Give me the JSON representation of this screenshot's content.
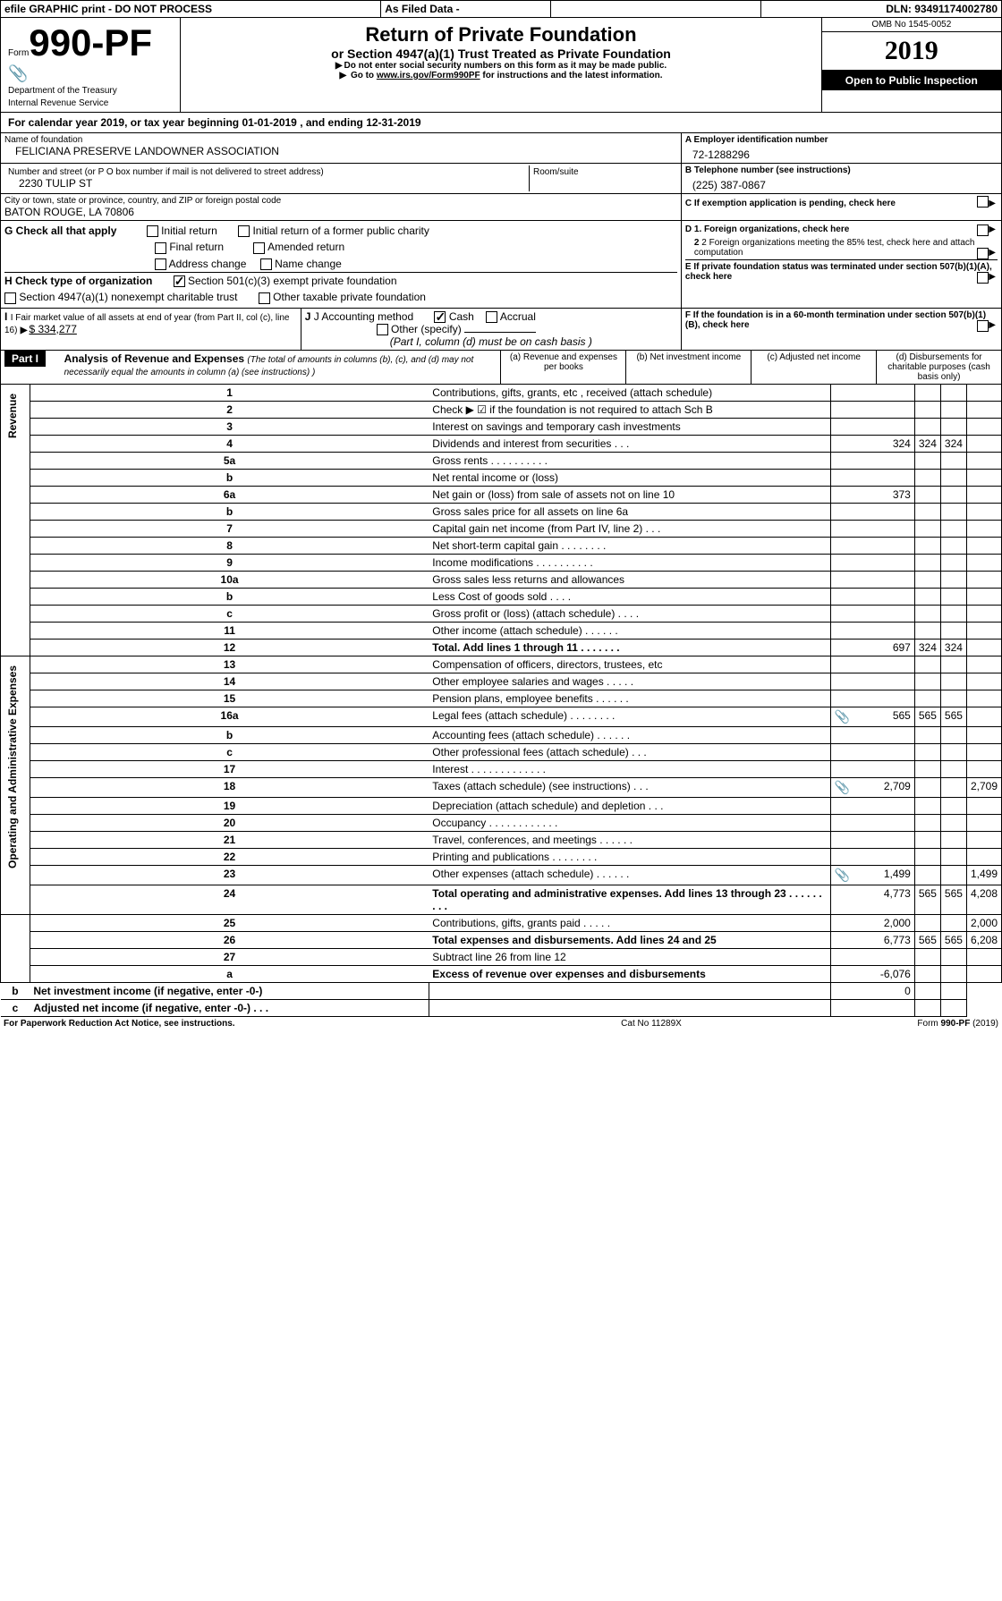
{
  "topbar": {
    "efile": "efile GRAPHIC print - DO NOT PROCESS",
    "asfiled": "As Filed Data -",
    "dln_label": "DLN:",
    "dln": "93491174002780"
  },
  "header": {
    "form_prefix": "Form",
    "form_number": "990-PF",
    "dept": "Department of the Treasury",
    "irs": "Internal Revenue Service",
    "title1": "Return of Private Foundation",
    "title2": "or Section 4947(a)(1) Trust Treated as Private Foundation",
    "note1": "Do not enter social security numbers on this form as it may be made public.",
    "note2_pre": "Go to ",
    "note2_link": "www.irs.gov/Form990PF",
    "note2_post": " for instructions and the latest information.",
    "omb": "OMB No 1545-0052",
    "year": "2019",
    "open_label": "Open to Public Inspection"
  },
  "calyear": {
    "text_pre": "For calendar year 2019, or tax year beginning ",
    "begin": "01-01-2019",
    "mid": " , and ending ",
    "end": "12-31-2019"
  },
  "id": {
    "name_label": "Name of foundation",
    "name": "FELICIANA PRESERVE LANDOWNER ASSOCIATION",
    "addr_label": "Number and street (or P O  box number if mail is not delivered to street address)",
    "addr": "2230 TULIP ST",
    "room_label": "Room/suite",
    "city_label": "City or town, state or province, country, and ZIP or foreign postal code",
    "city": "BATON ROUGE, LA  70806",
    "a_label": "A Employer identification number",
    "a_val": "72-1288296",
    "b_label": "B Telephone number (see instructions)",
    "b_val": "(225) 387-0867",
    "c_label": "C If exemption application is pending, check here"
  },
  "g": {
    "label": "G Check all that apply",
    "opts": [
      "Initial return",
      "Initial return of a former public charity",
      "Final return",
      "Amended return",
      "Address change",
      "Name change"
    ]
  },
  "d": {
    "d1": "D 1. Foreign organizations, check here",
    "d2": "2 Foreign organizations meeting the 85% test, check here and attach computation",
    "e": "E  If private foundation status was terminated under section 507(b)(1)(A), check here",
    "f": "F  If the foundation is in a 60-month termination under section 507(b)(1)(B), check here"
  },
  "h": {
    "label": "H Check type of organization",
    "o1": "Section 501(c)(3) exempt private foundation",
    "o2": "Section 4947(a)(1) nonexempt charitable trust",
    "o3": "Other taxable private foundation"
  },
  "i": {
    "label": "I Fair market value of all assets at end of year (from Part II, col  (c), line 16)",
    "val": "$  334,277"
  },
  "j": {
    "label": "J Accounting method",
    "cash": "Cash",
    "accrual": "Accrual",
    "other": "Other (specify)",
    "note": "(Part I, column (d) must be on cash basis )"
  },
  "part1": {
    "title": "Part I",
    "heading": "Analysis of Revenue and Expenses",
    "heading_note": "(The total of amounts in columns (b), (c), and (d) may not necessarily equal the amounts in column (a) (see instructions) )",
    "col_a": "(a)   Revenue and expenses per books",
    "col_b": "(b)  Net investment income",
    "col_c": "(c)  Adjusted net income",
    "col_d": "(d)  Disbursements for charitable purposes (cash basis only)",
    "side_rev": "Revenue",
    "side_exp": "Operating and Administrative Expenses"
  },
  "rows": [
    {
      "n": "1",
      "t": "Contributions, gifts, grants, etc , received (attach schedule)",
      "a": "",
      "b": "",
      "c": "",
      "d": ""
    },
    {
      "n": "2",
      "t": "Check ▶ ☑ if the foundation is not required to attach Sch  B",
      "a": "",
      "b": "",
      "c": "",
      "d": ""
    },
    {
      "n": "3",
      "t": "Interest on savings and temporary cash investments",
      "a": "",
      "b": "",
      "c": "",
      "d": ""
    },
    {
      "n": "4",
      "t": "Dividends and interest from securities   .   .   .",
      "a": "324",
      "b": "324",
      "c": "324",
      "d": ""
    },
    {
      "n": "5a",
      "t": "Gross rents   .   .   .   .   .   .   .   .   .   .",
      "a": "",
      "b": "",
      "c": "",
      "d": ""
    },
    {
      "n": "b",
      "t": "Net rental income or (loss)  ",
      "a": "",
      "b": "",
      "c": "",
      "d": ""
    },
    {
      "n": "6a",
      "t": "Net gain or (loss) from sale of assets not on line 10",
      "a": "373",
      "b": "",
      "c": "",
      "d": ""
    },
    {
      "n": "b",
      "t": "Gross sales price for all assets on line 6a",
      "a": "",
      "b": "",
      "c": "",
      "d": ""
    },
    {
      "n": "7",
      "t": "Capital gain net income (from Part IV, line 2)   .   .   .",
      "a": "",
      "b": "",
      "c": "",
      "d": ""
    },
    {
      "n": "8",
      "t": "Net short-term capital gain   .   .   .   .   .   .   .   .",
      "a": "",
      "b": "",
      "c": "",
      "d": ""
    },
    {
      "n": "9",
      "t": "Income modifications .   .   .   .   .   .   .   .   .   .",
      "a": "",
      "b": "",
      "c": "",
      "d": ""
    },
    {
      "n": "10a",
      "t": "Gross sales less returns and allowances",
      "a": "",
      "b": "",
      "c": "",
      "d": ""
    },
    {
      "n": "b",
      "t": "Less  Cost of goods sold   .   .   .   .",
      "a": "",
      "b": "",
      "c": "",
      "d": ""
    },
    {
      "n": "c",
      "t": "Gross profit or (loss) (attach schedule)   .   .   .   .",
      "a": "",
      "b": "",
      "c": "",
      "d": ""
    },
    {
      "n": "11",
      "t": "Other income (attach schedule)   .   .   .   .   .   .",
      "a": "",
      "b": "",
      "c": "",
      "d": ""
    },
    {
      "n": "12",
      "t": "Total. Add lines 1 through 11   .   .   .   .   .   .   .",
      "a": "697",
      "b": "324",
      "c": "324",
      "d": "",
      "bold": true
    },
    {
      "n": "13",
      "t": "Compensation of officers, directors, trustees, etc",
      "a": "",
      "b": "",
      "c": "",
      "d": ""
    },
    {
      "n": "14",
      "t": "Other employee salaries and wages   .   .   .   .   .",
      "a": "",
      "b": "",
      "c": "",
      "d": ""
    },
    {
      "n": "15",
      "t": "Pension plans, employee benefits .   .   .   .   .   .",
      "a": "",
      "b": "",
      "c": "",
      "d": ""
    },
    {
      "n": "16a",
      "t": "Legal fees (attach schedule) .   .   .   .   .   .   .   .",
      "a": "565",
      "b": "565",
      "c": "565",
      "d": "",
      "clip": true
    },
    {
      "n": "b",
      "t": "Accounting fees (attach schedule) .   .   .   .   .   .",
      "a": "",
      "b": "",
      "c": "",
      "d": ""
    },
    {
      "n": "c",
      "t": "Other professional fees (attach schedule)   .   .   .",
      "a": "",
      "b": "",
      "c": "",
      "d": ""
    },
    {
      "n": "17",
      "t": "Interest .   .   .   .   .   .   .   .   .   .   .   .   .",
      "a": "",
      "b": "",
      "c": "",
      "d": ""
    },
    {
      "n": "18",
      "t": "Taxes (attach schedule) (see instructions)   .   .   .",
      "a": "2,709",
      "b": "",
      "c": "",
      "d": "2,709",
      "clip": true
    },
    {
      "n": "19",
      "t": "Depreciation (attach schedule) and depletion   .   .   .",
      "a": "",
      "b": "",
      "c": "",
      "d": ""
    },
    {
      "n": "20",
      "t": "Occupancy   .   .   .   .   .   .   .   .   .   .   .   .",
      "a": "",
      "b": "",
      "c": "",
      "d": ""
    },
    {
      "n": "21",
      "t": "Travel, conferences, and meetings .   .   .   .   .   .",
      "a": "",
      "b": "",
      "c": "",
      "d": ""
    },
    {
      "n": "22",
      "t": "Printing and publications .   .   .   .   .   .   .   .",
      "a": "",
      "b": "",
      "c": "",
      "d": ""
    },
    {
      "n": "23",
      "t": "Other expenses (attach schedule) .   .   .   .   .   .",
      "a": "1,499",
      "b": "",
      "c": "",
      "d": "1,499",
      "clip": true
    },
    {
      "n": "24",
      "t": "Total operating and administrative expenses. Add lines 13 through 23   .   .   .   .   .   .   .   .   .",
      "a": "4,773",
      "b": "565",
      "c": "565",
      "d": "4,208",
      "bold": true
    },
    {
      "n": "25",
      "t": "Contributions, gifts, grants paid   .   .   .   .   .",
      "a": "2,000",
      "b": "",
      "c": "",
      "d": "2,000"
    },
    {
      "n": "26",
      "t": "Total expenses and disbursements. Add lines 24 and 25",
      "a": "6,773",
      "b": "565",
      "c": "565",
      "d": "6,208",
      "bold": true
    },
    {
      "n": "27",
      "t": "Subtract line 26 from line 12",
      "a": "",
      "b": "",
      "c": "",
      "d": ""
    },
    {
      "n": "a",
      "t": "Excess of revenue over expenses and disbursements",
      "a": "-6,076",
      "b": "",
      "c": "",
      "d": "",
      "bold": true
    },
    {
      "n": "b",
      "t": "Net investment income (if negative, enter -0-)",
      "a": "",
      "b": "0",
      "c": "",
      "d": "",
      "bold": true
    },
    {
      "n": "c",
      "t": "Adjusted net income (if negative, enter -0-)   .   .   .",
      "a": "",
      "b": "",
      "c": "",
      "d": "",
      "bold": true
    }
  ],
  "footer": {
    "paperwork": "For Paperwork Reduction Act Notice, see instructions.",
    "cat": "Cat  No  11289X",
    "form": "Form 990-PF (2019)"
  },
  "colors": {
    "black": "#000000",
    "white": "#ffffff"
  }
}
